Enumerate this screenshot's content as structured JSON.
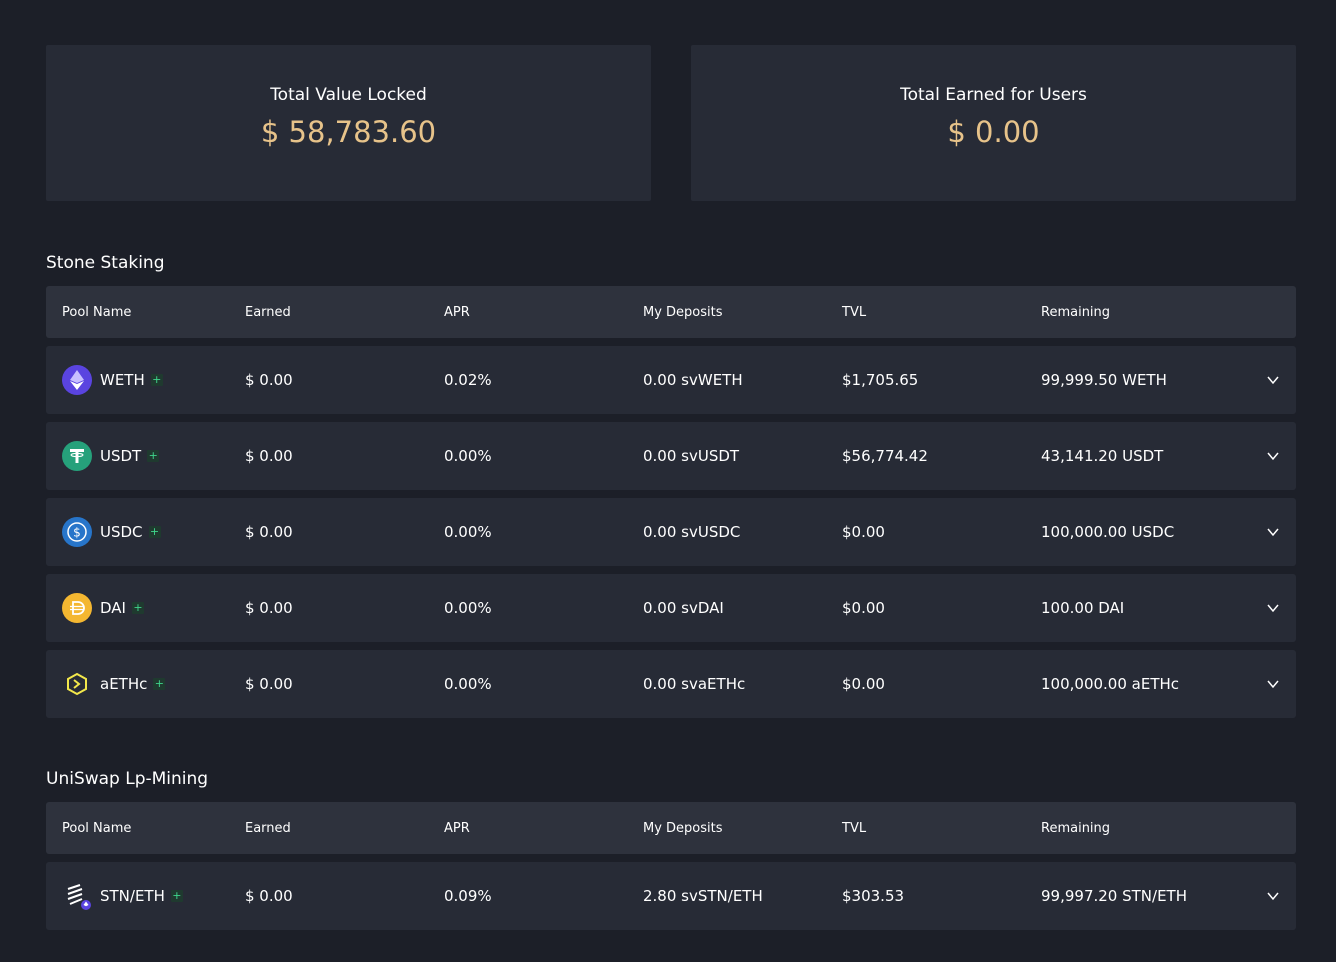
{
  "stats": {
    "tvl_label": "Total Value Locked",
    "tvl_value": "$ 58,783.60",
    "earned_label": "Total Earned for Users",
    "earned_value": "$ 0.00"
  },
  "columns": {
    "pool_name": "Pool Name",
    "earned": "Earned",
    "apr": "APR",
    "my_deposits": "My Deposits",
    "tvl": "TVL",
    "remaining": "Remaining"
  },
  "stone_staking": {
    "title": "Stone Staking",
    "rows": [
      {
        "name": "WETH",
        "icon": "weth-icon",
        "earned": "$ 0.00",
        "apr": "0.02%",
        "deposits": "0.00 svWETH",
        "tvl": "$1,705.65",
        "remaining": "99,999.50 WETH"
      },
      {
        "name": "USDT",
        "icon": "usdt-icon",
        "earned": "$ 0.00",
        "apr": "0.00%",
        "deposits": "0.00 svUSDT",
        "tvl": "$56,774.42",
        "remaining": "43,141.20 USDT"
      },
      {
        "name": "USDC",
        "icon": "usdc-icon",
        "earned": "$ 0.00",
        "apr": "0.00%",
        "deposits": "0.00 svUSDC",
        "tvl": "$0.00",
        "remaining": "100,000.00 USDC"
      },
      {
        "name": "DAI",
        "icon": "dai-icon",
        "earned": "$ 0.00",
        "apr": "0.00%",
        "deposits": "0.00 svDAI",
        "tvl": "$0.00",
        "remaining": "100.00 DAI"
      },
      {
        "name": "aETHc",
        "icon": "aethc-icon",
        "earned": "$ 0.00",
        "apr": "0.00%",
        "deposits": "0.00 svaETHc",
        "tvl": "$0.00",
        "remaining": "100,000.00 aETHc"
      }
    ]
  },
  "uniswap": {
    "title": "UniSwap Lp-Mining",
    "rows": [
      {
        "name": "STN/ETH",
        "icon": "stn-eth-icon",
        "earned": "$ 0.00",
        "apr": "0.09%",
        "deposits": "2.80 svSTN/ETH",
        "tvl": "$303.53",
        "remaining": "99,997.20 STN/ETH"
      }
    ]
  },
  "colors": {
    "background": "#1c1f28",
    "card": "#272b36",
    "header_row": "#2e323d",
    "accent_gold": "#e7c38a",
    "plus_green": "#3fd68c"
  }
}
